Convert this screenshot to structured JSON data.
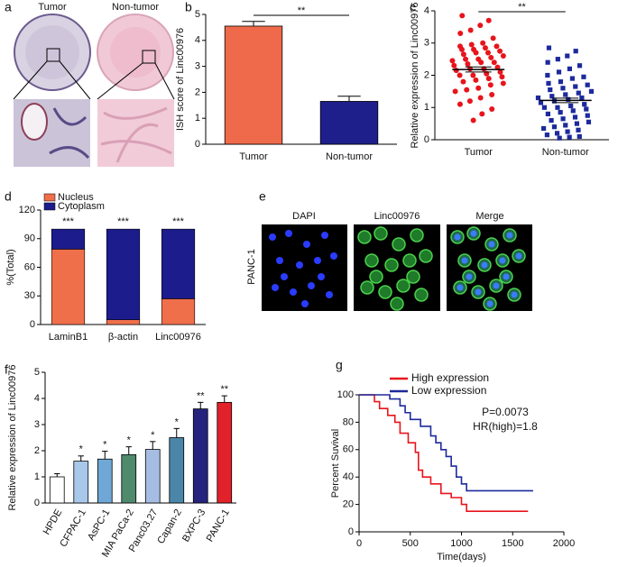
{
  "figure": {
    "panel_labels": [
      "a",
      "b",
      "c",
      "d",
      "e",
      "f",
      "g"
    ],
    "panel_a": {
      "labels": [
        "Tumor",
        "Non-tumor"
      ]
    },
    "panel_e": {
      "channels": [
        "DAPI",
        "Linc00976",
        "Merge"
      ],
      "cell_line": "PANC-1"
    }
  },
  "chart_data": [
    {
      "type": "bar",
      "categories": [
        "Tumor",
        "Non-tumor"
      ],
      "values": [
        4.55,
        1.65
      ],
      "errors": [
        0.18,
        0.2
      ],
      "colors": [
        "#ee6a4a",
        "#1f1f8c"
      ],
      "y_label": "ISH score of Linc00976",
      "ylim": [
        0,
        5
      ],
      "yticks": [
        0,
        1,
        2,
        3,
        4,
        5
      ],
      "significance": "**"
    },
    {
      "type": "dot",
      "categories": [
        "Tumor",
        "Non-tumor"
      ],
      "values": [
        [
          3.85,
          3.7,
          3.55,
          3.4,
          3.3,
          3.15,
          3.0,
          2.95,
          2.9,
          2.9,
          2.85,
          2.8,
          2.8,
          2.75,
          2.7,
          2.7,
          2.65,
          2.6,
          2.55,
          2.5,
          2.5,
          2.45,
          2.4,
          2.4,
          2.35,
          2.3,
          2.25,
          2.2,
          2.2,
          2.15,
          2.1,
          2.05,
          2.0,
          2.0,
          1.95,
          1.9,
          1.85,
          1.8,
          1.75,
          1.7,
          1.6,
          1.55,
          1.5,
          1.4,
          1.3,
          1.2,
          1.1,
          0.95,
          0.8,
          0.6
        ],
        [
          2.85,
          2.75,
          2.6,
          2.5,
          2.4,
          2.3,
          2.2,
          2.1,
          2.0,
          1.95,
          1.9,
          1.8,
          1.75,
          1.7,
          1.65,
          1.6,
          1.55,
          1.5,
          1.45,
          1.4,
          1.35,
          1.3,
          1.3,
          1.25,
          1.2,
          1.15,
          1.1,
          1.05,
          1.0,
          1.0,
          0.95,
          0.9,
          0.85,
          0.8,
          0.75,
          0.7,
          0.65,
          0.6,
          0.55,
          0.5,
          0.45,
          0.4,
          0.35,
          0.3,
          0.25,
          0.2,
          0.15,
          0.1,
          0.08,
          0.05
        ]
      ],
      "means": [
        2.18,
        1.22
      ],
      "sems": [
        0.08,
        0.07
      ],
      "colors": [
        "#e8141c",
        "#1c2a9c"
      ],
      "markers": [
        "circle",
        "square"
      ],
      "y_label": "Relative expression of Linc00976",
      "ylim": [
        0,
        4
      ],
      "yticks": [
        0,
        1,
        2,
        3,
        4
      ],
      "significance": "**"
    },
    {
      "type": "stacked_bar",
      "categories": [
        "LaminB1",
        "β-actin",
        "Linc00976"
      ],
      "series": [
        {
          "name": "Nucleus",
          "color": "#f06f4b",
          "values": [
            79,
            5,
            27
          ]
        },
        {
          "name": "Cytoplasm",
          "color": "#1c1c8c",
          "values": [
            21,
            95,
            73
          ]
        }
      ],
      "annotations": [
        "***",
        "***",
        "***"
      ],
      "legend": "top-left",
      "y_label": "%(Total)",
      "ylim": [
        0,
        120
      ],
      "yticks": [
        0,
        30,
        60,
        90,
        120
      ]
    },
    {
      "type": "bar",
      "categories": [
        "HPDE",
        "CFPAC-1",
        "AsPC-1",
        "MIA PaCa-2",
        "Panc03.27",
        "Capan-2",
        "BXPC-3",
        "PANC-1"
      ],
      "values": [
        1.0,
        1.6,
        1.68,
        1.85,
        2.05,
        2.5,
        3.6,
        3.85
      ],
      "errors": [
        0.12,
        0.2,
        0.3,
        0.3,
        0.3,
        0.35,
        0.25,
        0.25
      ],
      "colors": [
        "#ffffff",
        "#a8c8ea",
        "#6fa7d6",
        "#4f8a6d",
        "#a6bde3",
        "#4a86a8",
        "#25237e",
        "#e3212a"
      ],
      "annotations": [
        null,
        "*",
        "*",
        "*",
        "*",
        "*",
        "**",
        "**"
      ],
      "y_label": "Relative expression of Linc00976",
      "ylim": [
        0,
        5
      ],
      "yticks": [
        0,
        1,
        2,
        3,
        4,
        5
      ]
    },
    {
      "type": "survival",
      "step": true,
      "series": [
        {
          "name": "High expression",
          "color": "#e8141c",
          "x": [
            0,
            150,
            200,
            280,
            350,
            400,
            480,
            550,
            580,
            620,
            700,
            800,
            900,
            1000,
            1050,
            1650
          ],
          "values": [
            100,
            95,
            90,
            85,
            80,
            72,
            65,
            58,
            45,
            40,
            35,
            28,
            25,
            20,
            15,
            15
          ]
        },
        {
          "name": "Low expression",
          "color": "#1c2a9c",
          "x": [
            0,
            300,
            400,
            450,
            500,
            600,
            700,
            750,
            800,
            850,
            900,
            950,
            1000,
            1050,
            1700
          ],
          "values": [
            100,
            97,
            92,
            87,
            82,
            77,
            70,
            65,
            60,
            55,
            48,
            40,
            35,
            30,
            30
          ]
        }
      ],
      "annotations": [
        "P=0.0073",
        "HR(high)=1.8"
      ],
      "legend": "top-left",
      "x_label": "Time(days)",
      "y_label": "Percent Suvival",
      "xlim": [
        0,
        2000
      ],
      "xticks": [
        0,
        500,
        1000,
        1500,
        2000
      ],
      "ylim": [
        0,
        100
      ],
      "yticks": [
        0,
        20,
        40,
        60,
        80,
        100
      ]
    }
  ]
}
